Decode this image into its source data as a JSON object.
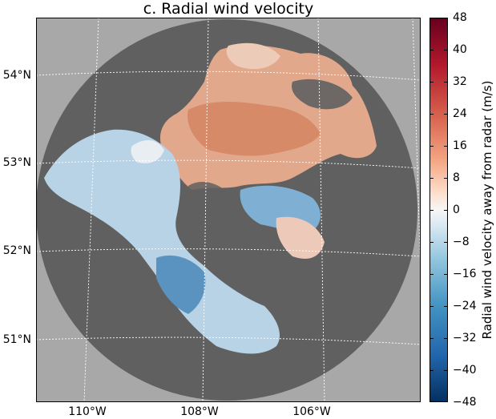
{
  "title": "c. Radial wind velocity",
  "latitude_labels": [
    "54°N",
    "53°N",
    "52°N",
    "51°N"
  ],
  "longitude_labels": [
    "110°W",
    "108°W",
    "106°W"
  ],
  "colorbar": {
    "label": "Radial wind velocity away from radar (m/s)",
    "min": -48,
    "max": 48,
    "ticks": [
      "48",
      "40",
      "32",
      "24",
      "16",
      "8",
      "0",
      "−8",
      "−16",
      "−24",
      "−32",
      "−40",
      "−48"
    ]
  },
  "colors": {
    "background": "#a8a8a8",
    "radar_no_data": "#606060",
    "away_max": "#67001f",
    "toward_max": "#053061",
    "zero": "#f7f7f7",
    "grid": "#ffffff"
  }
}
